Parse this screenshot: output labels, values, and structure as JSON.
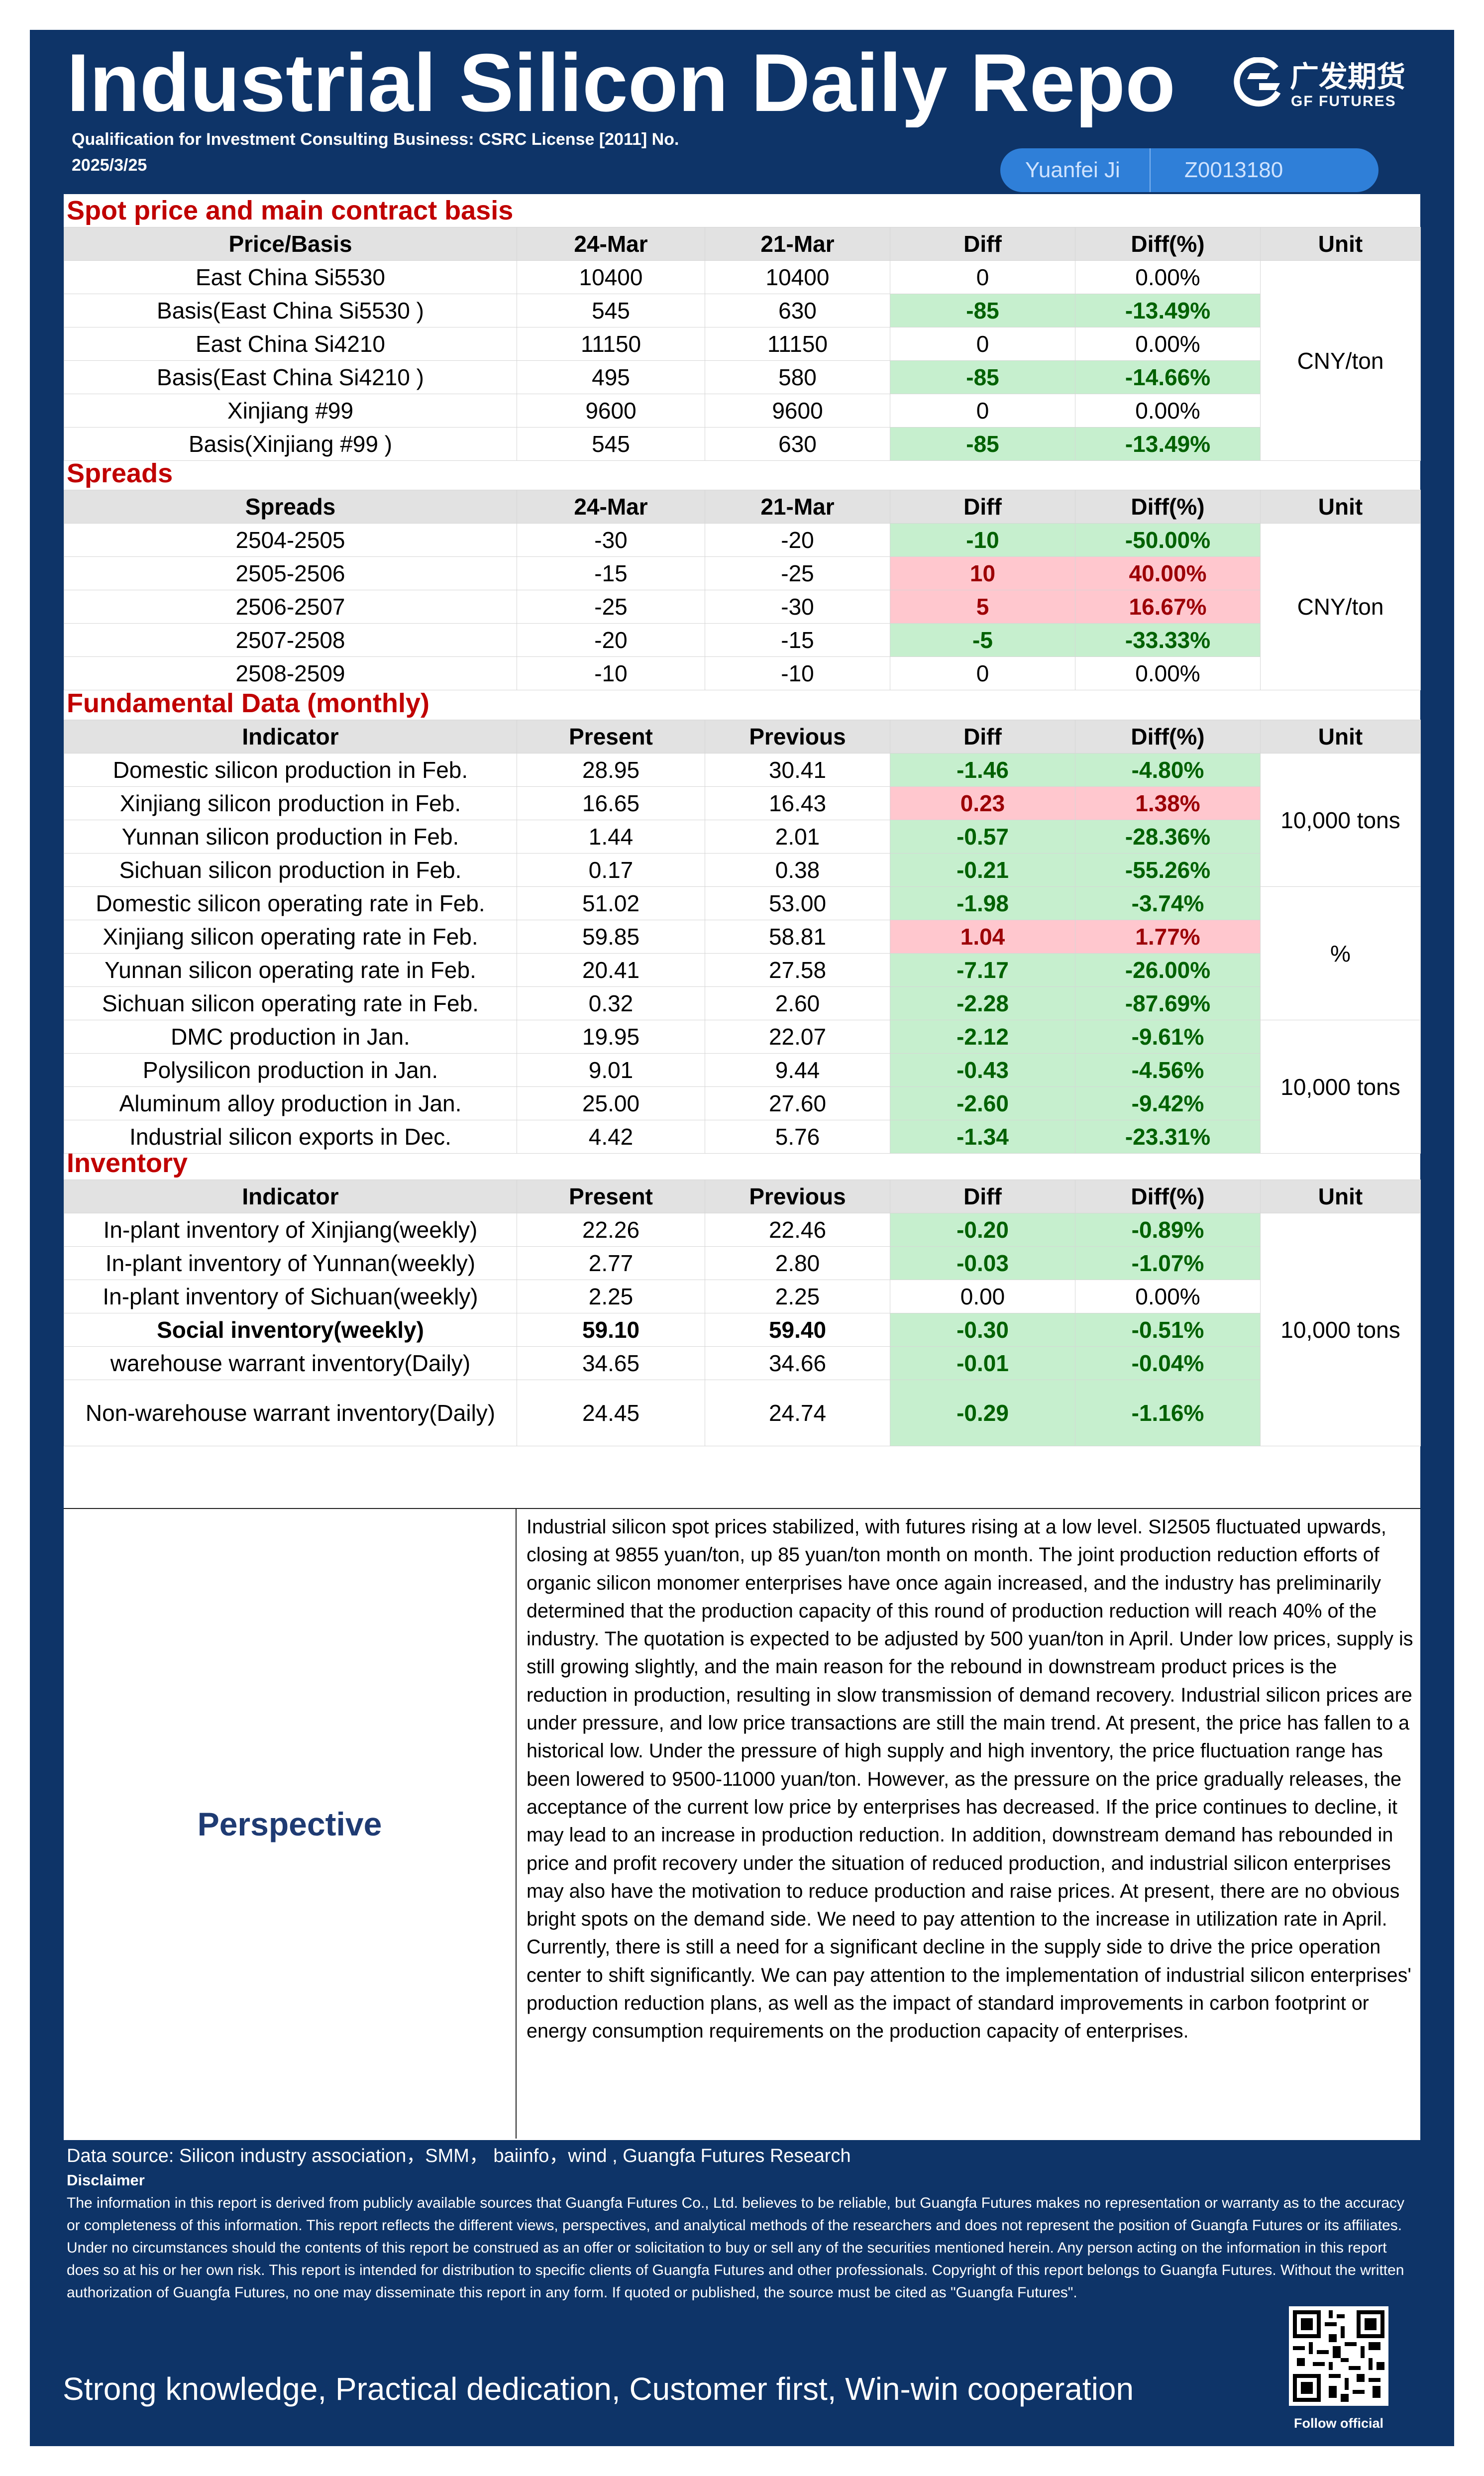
{
  "header": {
    "title": "Industrial Silicon Daily Repo",
    "qualification": "Qualification for Investment Consulting Business: CSRC License [2011] No.",
    "date": "2025/3/25",
    "analyst_name": "Yuanfei Ji",
    "analyst_license": "Z0013180",
    "logo_cn": "广发期货",
    "logo_en": "GF FUTURES"
  },
  "spot": {
    "title": "Spot price and main contract basis",
    "headers": [
      "Price/Basis",
      "24-Mar",
      "21-Mar",
      "Diff",
      "Diff(%)",
      "Unit"
    ],
    "unit": "CNY/ton",
    "rows": [
      {
        "name": "East China Si5530",
        "a": "10400",
        "b": "10400",
        "diff": "0",
        "pct": "0.00%"
      },
      {
        "name": "Basis(East China Si5530 )",
        "a": "545",
        "b": "630",
        "diff": "-85",
        "pct": "-13.49%"
      },
      {
        "name": "East China Si4210",
        "a": "11150",
        "b": "11150",
        "diff": "0",
        "pct": "0.00%"
      },
      {
        "name": "Basis(East China Si4210 )",
        "a": "495",
        "b": "580",
        "diff": "-85",
        "pct": "-14.66%"
      },
      {
        "name": "Xinjiang #99",
        "a": "9600",
        "b": "9600",
        "diff": "0",
        "pct": "0.00%"
      },
      {
        "name": "Basis(Xinjiang #99 )",
        "a": "545",
        "b": "630",
        "diff": "-85",
        "pct": "-13.49%"
      }
    ]
  },
  "spreads": {
    "title": "Spreads",
    "headers": [
      "Spreads",
      "24-Mar",
      "21-Mar",
      "Diff",
      "Diff(%)",
      "Unit"
    ],
    "unit": "CNY/ton",
    "rows": [
      {
        "name": "2504-2505",
        "a": "-30",
        "b": "-20",
        "diff": "-10",
        "pct": "-50.00%"
      },
      {
        "name": "2505-2506",
        "a": "-15",
        "b": "-25",
        "diff": "10",
        "pct": "40.00%"
      },
      {
        "name": "2506-2507",
        "a": "-25",
        "b": "-30",
        "diff": "5",
        "pct": "16.67%"
      },
      {
        "name": "2507-2508",
        "a": "-20",
        "b": "-15",
        "diff": "-5",
        "pct": "-33.33%"
      },
      {
        "name": "2508-2509",
        "a": "-10",
        "b": "-10",
        "diff": "0",
        "pct": "0.00%"
      }
    ]
  },
  "fundamental": {
    "title": "Fundamental Data (monthly)",
    "headers": [
      "Indicator",
      "Present",
      "Previous",
      "Diff",
      "Diff(%)",
      "Unit"
    ],
    "units": [
      "10,000 tons",
      "%",
      "10,000 tons"
    ],
    "rows": [
      {
        "name": "Domestic silicon production in Feb.",
        "a": "28.95",
        "b": "30.41",
        "diff": "-1.46",
        "pct": "-4.80%"
      },
      {
        "name": "Xinjiang silicon production in Feb.",
        "a": "16.65",
        "b": "16.43",
        "diff": "0.23",
        "pct": "1.38%"
      },
      {
        "name": "Yunnan silicon production in Feb.",
        "a": "1.44",
        "b": "2.01",
        "diff": "-0.57",
        "pct": "-28.36%"
      },
      {
        "name": "Sichuan silicon production in Feb.",
        "a": "0.17",
        "b": "0.38",
        "diff": "-0.21",
        "pct": "-55.26%"
      },
      {
        "name": "Domestic silicon operating rate in Feb.",
        "a": "51.02",
        "b": "53.00",
        "diff": "-1.98",
        "pct": "-3.74%"
      },
      {
        "name": "Xinjiang silicon operating rate in Feb.",
        "a": "59.85",
        "b": "58.81",
        "diff": "1.04",
        "pct": "1.77%"
      },
      {
        "name": "Yunnan silicon operating rate in Feb.",
        "a": "20.41",
        "b": "27.58",
        "diff": "-7.17",
        "pct": "-26.00%"
      },
      {
        "name": "Sichuan silicon operating rate in Feb.",
        "a": "0.32",
        "b": "2.60",
        "diff": "-2.28",
        "pct": "-87.69%"
      },
      {
        "name": "DMC production in Jan.",
        "a": "19.95",
        "b": "22.07",
        "diff": "-2.12",
        "pct": "-9.61%"
      },
      {
        "name": "Polysilicon production in Jan.",
        "a": "9.01",
        "b": "9.44",
        "diff": "-0.43",
        "pct": "-4.56%"
      },
      {
        "name": "Aluminum alloy production in Jan.",
        "a": "25.00",
        "b": "27.60",
        "diff": "-2.60",
        "pct": "-9.42%"
      },
      {
        "name": "Industrial silicon exports in Dec.",
        "a": "4.42",
        "b": "5.76",
        "diff": "-1.34",
        "pct": "-23.31%"
      }
    ]
  },
  "inventory": {
    "title": "Inventory",
    "headers": [
      "Indicator",
      "Present",
      "Previous",
      "Diff",
      "Diff(%)",
      "Unit"
    ],
    "unit": "10,000 tons",
    "rows": [
      {
        "name": "In-plant inventory of Xinjiang(weekly)",
        "a": "22.26",
        "b": "22.46",
        "diff": "-0.20",
        "pct": "-0.89%"
      },
      {
        "name": "In-plant inventory of Yunnan(weekly)",
        "a": "2.77",
        "b": "2.80",
        "diff": "-0.03",
        "pct": "-1.07%"
      },
      {
        "name": "In-plant inventory of Sichuan(weekly)",
        "a": "2.25",
        "b": "2.25",
        "diff": "0.00",
        "pct": "0.00%"
      },
      {
        "name": "Social inventory(weekly)",
        "a": "59.10",
        "b": "59.40",
        "diff": "-0.30",
        "pct": "-0.51%"
      },
      {
        "name": "warehouse warrant inventory(Daily)",
        "a": "34.65",
        "b": "34.66",
        "diff": "-0.01",
        "pct": "-0.04%"
      },
      {
        "name": "Non-warehouse warrant inventory(Daily)",
        "a": "24.45",
        "b": "24.74",
        "diff": "-0.29",
        "pct": "-1.16%"
      }
    ]
  },
  "perspective": {
    "label": "Perspective",
    "text": "Industrial silicon spot prices stabilized, with futures rising at a low level. SI2505 fluctuated upwards, closing at 9855 yuan/ton, up 85 yuan/ton month on month. The joint production reduction efforts of organic silicon monomer enterprises have once again increased, and the industry has preliminarily determined that the production capacity of this round of production reduction will reach 40% of the industry. The quotation is expected to be adjusted by 500 yuan/ton in April. Under low prices, supply is still growing slightly, and the main reason for the rebound in downstream product prices is the reduction in production, resulting in slow transmission of demand recovery. Industrial silicon prices are under pressure, and low price transactions are still the main trend. At present, the price has fallen to a historical low. Under the pressure of high supply and high inventory, the price fluctuation range has been lowered to 9500-11000 yuan/ton. However, as the pressure on the price gradually releases, the acceptance of the current low price by enterprises has decreased. If the price continues to decline, it may lead to an increase in production reduction. In addition, downstream demand has rebounded in price and profit recovery under the situation of reduced production, and industrial silicon enterprises may also have the motivation to reduce production and raise prices. At present, there are no obvious bright spots on the demand side. We need to pay attention to the increase in utilization rate in April. Currently, there is still a need for a significant decline in the supply side to drive the price operation center to shift significantly. We can pay attention to the implementation of industrial silicon enterprises' production reduction plans, as well as the impact of standard improvements in carbon footprint or energy consumption requirements on the production capacity of enterprises."
  },
  "footer": {
    "source": "Data source: Silicon industry association，SMM，  baiinfo，wind , Guangfa Futures Research",
    "disclaimer_title": "Disclaimer",
    "disclaimer": "The information in this report is derived from publicly available sources that Guangfa Futures Co., Ltd. believes to be reliable, but Guangfa Futures makes no representation or warranty as to the accuracy or completeness of this information. This report reflects the different views, perspectives, and analytical methods of the researchers and does not represent the position of Guangfa Futures or its affiliates. Under no circumstances should the contents of this report be construed as an offer or solicitation to buy or sell any of the securities mentioned herein. Any person acting on the information in this report does so at his or her own risk. This report is intended for distribution to specific clients of Guangfa Futures and other professionals. Copyright of this report belongs to Guangfa Futures. Without the written authorization of Guangfa Futures, no one may disseminate this report in any form. If quoted or published, the source must be cited as \"Guangfa Futures\".",
    "slogan": "Strong knowledge, Practical dedication, Customer first, Win-win cooperation",
    "follow": "Follow official"
  }
}
